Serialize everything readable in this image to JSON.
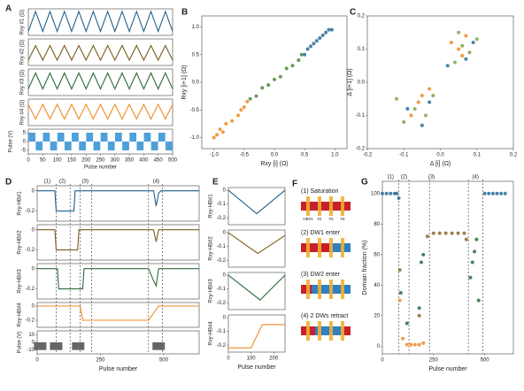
{
  "chart_data": [
    {
      "type": "line",
      "panel": "A",
      "ylabel": "Rxy #1 (Ω)",
      "xlim": [
        0,
        500
      ],
      "ylim": [
        0,
        1
      ],
      "series": [
        {
          "color": "#1f5f8b",
          "x": [
            0,
            25,
            50,
            75,
            100,
            125,
            150,
            175,
            200,
            225,
            250,
            275,
            300,
            325,
            350,
            375,
            400,
            425,
            450,
            475,
            500
          ],
          "values": [
            0.15,
            0.9,
            0.15,
            0.9,
            0.15,
            0.9,
            0.15,
            0.9,
            0.15,
            0.9,
            0.15,
            0.9,
            0.15,
            0.9,
            0.15,
            0.9,
            0.15,
            0.9,
            0.15,
            0.9,
            0.15
          ]
        }
      ]
    },
    {
      "type": "line",
      "ylabel": "Rxy #2 (Ω)",
      "xlim": [
        0,
        500
      ],
      "ylim": [
        0,
        1
      ],
      "series": [
        {
          "color": "#7a5c1e",
          "x": [
            0,
            25,
            50,
            75,
            100,
            125,
            150,
            175,
            200,
            225,
            250,
            275,
            300,
            325,
            350,
            375,
            400,
            425,
            450,
            475,
            500
          ],
          "values": [
            0.2,
            0.75,
            0.2,
            0.75,
            0.2,
            0.75,
            0.2,
            0.75,
            0.2,
            0.75,
            0.2,
            0.75,
            0.2,
            0.75,
            0.2,
            0.75,
            0.2,
            0.75,
            0.2,
            0.75,
            0.2
          ]
        }
      ]
    },
    {
      "type": "line",
      "ylabel": "Rxy #3 (Ω)",
      "xlim": [
        0,
        500
      ],
      "ylim": [
        0,
        1
      ],
      "series": [
        {
          "color": "#2e6b3a",
          "x": [
            0,
            25,
            50,
            75,
            100,
            125,
            150,
            175,
            200,
            225,
            250,
            275,
            300,
            325,
            350,
            375,
            400,
            425,
            450,
            475,
            500
          ],
          "values": [
            0.25,
            0.85,
            0.25,
            0.85,
            0.25,
            0.85,
            0.25,
            0.85,
            0.25,
            0.85,
            0.25,
            0.85,
            0.25,
            0.85,
            0.25,
            0.85,
            0.25,
            0.85,
            0.25,
            0.85,
            0.25
          ]
        }
      ]
    },
    {
      "type": "line",
      "ylabel": "Rxy #4 (Ω)",
      "xlim": [
        0,
        500
      ],
      "ylim": [
        0,
        1
      ],
      "series": [
        {
          "color": "#f08a24",
          "x": [
            0,
            25,
            50,
            75,
            100,
            125,
            150,
            175,
            200,
            225,
            250,
            275,
            300,
            325,
            350,
            375,
            400,
            425,
            450,
            475,
            500
          ],
          "values": [
            0.8,
            0.25,
            0.8,
            0.25,
            0.8,
            0.25,
            0.8,
            0.25,
            0.8,
            0.25,
            0.8,
            0.25,
            0.8,
            0.25,
            0.8,
            0.25,
            0.8,
            0.25,
            0.8,
            0.25,
            0.8
          ]
        }
      ]
    },
    {
      "type": "bar",
      "ylabel": "Pulse (V)",
      "xlabel": "Pulse number",
      "xlim": [
        0,
        500
      ],
      "ylim": [
        -7,
        7
      ],
      "yticks": [
        -5,
        0,
        5
      ],
      "xticks": [
        0,
        50,
        100,
        150,
        200,
        250,
        300,
        350,
        400,
        450,
        500
      ],
      "series": [
        {
          "color": "#4ea0d8",
          "x": [
            12.5,
            37.5,
            62.5,
            87.5,
            112.5,
            137.5,
            162.5,
            187.5,
            212.5,
            237.5,
            262.5,
            287.5,
            312.5,
            337.5,
            362.5,
            387.5,
            412.5,
            437.5,
            462.5,
            487.5
          ],
          "values": [
            5,
            -5,
            5,
            -5,
            5,
            -5,
            5,
            -5,
            5,
            -5,
            5,
            -5,
            5,
            -5,
            5,
            -5,
            5,
            -5,
            5,
            -5
          ]
        }
      ]
    },
    {
      "type": "scatter",
      "panel": "B",
      "xlabel": "Rxy [i] (Ω)",
      "ylabel": "Rxy [i+1] (Ω)",
      "xlim": [
        -1.2,
        1.2
      ],
      "ylim": [
        -1.2,
        1.2
      ],
      "xticks": [
        {
          "value": -1,
          "label": "-1.0"
        },
        -0.5,
        {
          "value": 0,
          "label": "0.0"
        },
        0.5,
        {
          "value": 1,
          "label": "1.0"
        }
      ],
      "yticks": [
        {
          "value": -1,
          "label": "-1.0"
        },
        -0.5,
        {
          "value": 0,
          "label": "0.0"
        },
        0.5,
        {
          "value": 1,
          "label": "1.0"
        }
      ],
      "series": [
        {
          "color": "#f08a24",
          "x": [
            -1.0,
            -0.95,
            -0.9,
            -0.85,
            -0.8,
            -0.7,
            -0.6,
            -0.55,
            -0.5,
            -0.45
          ],
          "values": [
            -1.0,
            -0.95,
            -0.85,
            -0.9,
            -0.75,
            -0.7,
            -0.6,
            -0.5,
            -0.45,
            -0.35
          ]
        },
        {
          "color": "#4f8a3c",
          "x": [
            -0.4,
            -0.3,
            -0.2,
            -0.1,
            0.0,
            0.1,
            0.2,
            0.3,
            0.4,
            0.45
          ],
          "values": [
            -0.3,
            -0.25,
            -0.1,
            -0.05,
            0.05,
            0.1,
            0.25,
            0.3,
            0.4,
            0.5
          ]
        },
        {
          "color": "#2a6f97",
          "x": [
            0.5,
            0.55,
            0.6,
            0.65,
            0.7,
            0.75,
            0.8,
            0.85,
            0.9,
            0.95
          ],
          "values": [
            0.5,
            0.6,
            0.65,
            0.7,
            0.75,
            0.8,
            0.85,
            0.9,
            0.95,
            0.95
          ]
        }
      ]
    },
    {
      "type": "scatter",
      "panel": "C",
      "xlabel": "Δ [i] (Ω)",
      "ylabel": "Δ [i+1] (Ω)",
      "xlim": [
        -0.2,
        0.2
      ],
      "ylim": [
        -0.2,
        0.2
      ],
      "xticks": [
        -0.2,
        -0.1,
        {
          "value": 0,
          "label": "0.0"
        },
        0.1,
        0.2
      ],
      "yticks": [
        -0.2,
        -0.1,
        {
          "value": 0,
          "label": "0.0"
        },
        0.1,
        0.2
      ],
      "series": [
        {
          "color": "#f08a24",
          "x": [
            -0.08,
            -0.06,
            -0.05,
            -0.03,
            0.03,
            0.05,
            0.07,
            0.06
          ],
          "values": [
            -0.1,
            -0.06,
            -0.04,
            -0.02,
            0.12,
            0.1,
            0.14,
            0.08
          ]
        },
        {
          "color": "#7aa84a",
          "x": [
            -0.12,
            -0.1,
            -0.07,
            -0.04,
            -0.02,
            0.04,
            0.06,
            0.08,
            0.1,
            0.05
          ],
          "values": [
            -0.05,
            -0.12,
            -0.08,
            -0.1,
            -0.04,
            0.06,
            0.11,
            0.09,
            0.13,
            0.15
          ]
        },
        {
          "color": "#2a6f97",
          "x": [
            -0.09,
            -0.05,
            -0.03,
            0.02,
            0.07,
            0.09
          ],
          "values": [
            -0.08,
            -0.13,
            -0.06,
            0.05,
            0.07,
            0.12
          ]
        }
      ]
    },
    {
      "type": "line",
      "panel": "D",
      "ylabel": "Rxy-HB#1",
      "xlim": [
        0,
        640
      ],
      "ylim": [
        -0.3,
        0.05
      ],
      "yticks": [
        -0.2,
        0
      ],
      "vlines": [
        75,
        130,
        170,
        215,
        440,
        495
      ],
      "annotations": [
        {
          "text": "(1)",
          "x": 40
        },
        {
          "text": "(2)",
          "x": 100
        },
        {
          "text": "(3)",
          "x": 190
        },
        {
          "text": "(4)",
          "x": 470
        }
      ],
      "series": [
        {
          "color": "#1f5f8b",
          "x": [
            0,
            70,
            75,
            145,
            150,
            460,
            470,
            480,
            490,
            640
          ],
          "values": [
            0,
            0,
            -0.2,
            -0.2,
            0,
            0,
            -0.15,
            -0.02,
            0,
            0
          ]
        }
      ]
    },
    {
      "type": "line",
      "ylabel": "Rxy-HB#2",
      "xlim": [
        0,
        640
      ],
      "ylim": [
        -0.3,
        0.05
      ],
      "yticks": [
        -0.2,
        0
      ],
      "series": [
        {
          "color": "#7a5c1e",
          "x": [
            0,
            70,
            75,
            160,
            165,
            460,
            470,
            480,
            640
          ],
          "values": [
            0,
            0,
            -0.2,
            -0.2,
            0,
            0,
            -0.12,
            0,
            0
          ]
        }
      ]
    },
    {
      "type": "line",
      "ylabel": "Rxy-HB#3",
      "xlim": [
        0,
        640
      ],
      "ylim": [
        -0.3,
        0.05
      ],
      "yticks": [
        -0.2,
        0
      ],
      "series": [
        {
          "color": "#2e6b3a",
          "x": [
            0,
            80,
            85,
            180,
            185,
            440,
            460,
            470,
            480,
            640
          ],
          "values": [
            0,
            0,
            -0.2,
            -0.2,
            0,
            0,
            -0.12,
            -0.17,
            0,
            0
          ]
        }
      ]
    },
    {
      "type": "line",
      "ylabel": "Rxy-HB#4",
      "xlim": [
        0,
        640
      ],
      "ylim": [
        -0.3,
        0.05
      ],
      "yticks": [
        -0.2,
        0
      ],
      "series": [
        {
          "color": "#f08a24",
          "x": [
            0,
            170,
            180,
            440,
            480,
            640
          ],
          "values": [
            0,
            0,
            -0.2,
            -0.2,
            0,
            0
          ]
        }
      ]
    },
    {
      "type": "bar",
      "ylabel": "Pulse (V)",
      "xlabel": "Pulse number",
      "xlim": [
        0,
        640
      ],
      "ylim": [
        -15,
        15
      ],
      "yticks": [
        -10,
        0,
        10
      ],
      "xticks": [
        0,
        250,
        500
      ],
      "series": [
        {
          "color": "#666666",
          "x": [
            12,
            75,
            162,
            480
          ],
          "values": [
            -10,
            -10,
            -10,
            -10
          ]
        }
      ]
    },
    {
      "type": "line",
      "panel": "E",
      "ylabel": "Rxy-HB#1",
      "xlim": [
        0,
        250
      ],
      "ylim": [
        -0.25,
        0.02
      ],
      "yticks": [
        -0.2,
        -0.1,
        0
      ],
      "series": [
        {
          "color": "#1f5f8b",
          "x": [
            0,
            125,
            250
          ],
          "values": [
            0,
            -0.17,
            0
          ]
        }
      ]
    },
    {
      "type": "line",
      "ylabel": "Rxy-HB#2",
      "xlim": [
        0,
        250
      ],
      "ylim": [
        -0.25,
        0.02
      ],
      "yticks": [
        -0.2,
        -0.1,
        0
      ],
      "series": [
        {
          "color": "#7a5c1e",
          "x": [
            0,
            130,
            250
          ],
          "values": [
            0,
            -0.15,
            -0.02
          ]
        }
      ]
    },
    {
      "type": "line",
      "ylabel": "Rxy-HB#3",
      "xlim": [
        0,
        250
      ],
      "ylim": [
        -0.25,
        0.02
      ],
      "yticks": [
        -0.2,
        -0.1,
        0
      ],
      "series": [
        {
          "color": "#2e6b3a",
          "x": [
            0,
            140,
            250
          ],
          "values": [
            0,
            -0.18,
            0
          ]
        }
      ]
    },
    {
      "type": "line",
      "ylabel": "Rxy-HB#4",
      "xlabel": "Pulse number",
      "xlim": [
        0,
        250
      ],
      "ylim": [
        -0.25,
        0.02
      ],
      "yticks": [
        -0.2,
        -0.1,
        0
      ],
      "xticks": [
        0,
        100,
        200
      ],
      "series": [
        {
          "color": "#f08a24",
          "x": [
            0,
            100,
            150,
            250
          ],
          "values": [
            -0.22,
            -0.22,
            -0.05,
            -0.05
          ]
        }
      ]
    },
    {
      "type": "scatter",
      "panel": "G",
      "xlabel": "Pulse number",
      "ylabel": "Domain fraction (%)",
      "xlim": [
        0,
        640
      ],
      "ylim": [
        -5,
        108
      ],
      "xticks": [
        0,
        250,
        500
      ],
      "yticks": [
        0,
        20,
        40,
        60,
        80,
        100
      ],
      "vlines": [
        80,
        130,
        230,
        420,
        490
      ],
      "annotations": [
        {
          "text": "(1)",
          "x": 40
        },
        {
          "text": "(2)",
          "x": 105
        },
        {
          "text": "(3)",
          "x": 240
        },
        {
          "text": "(4)",
          "x": 455
        }
      ],
      "series": [
        {
          "color": "#2a6f97",
          "x": [
            0,
            20,
            40,
            60,
            70,
            80,
            500,
            520,
            540,
            560,
            580,
            600
          ],
          "values": [
            100,
            100,
            100,
            100,
            100,
            97,
            100,
            100,
            100,
            100,
            100,
            100
          ]
        },
        {
          "color": "#f08a24",
          "x": [
            85,
            100,
            120,
            140,
            160,
            180,
            200
          ],
          "values": [
            30,
            5,
            1,
            1,
            1,
            1,
            2
          ]
        },
        {
          "color": "#8a6a2a",
          "x": [
            85,
            180,
            220,
            250,
            280,
            310,
            340,
            370,
            400,
            410
          ],
          "values": [
            50,
            20,
            72,
            74,
            74,
            74,
            74,
            74,
            74,
            70
          ]
        },
        {
          "color": "#2e6b3a",
          "x": [
            90,
            120,
            180,
            190,
            200,
            430,
            440,
            450,
            460,
            470
          ],
          "values": [
            35,
            15,
            25,
            55,
            60,
            45,
            55,
            62,
            70,
            30
          ]
        }
      ]
    }
  ],
  "diagram": {
    "panel": "F",
    "steps": [
      "(1) Saturation",
      "(2) DW1 enter",
      "(3) DW2 enter",
      "(4) 2 DWs retract"
    ],
    "bars": [
      "HB#1",
      "#2",
      "#3",
      "#4"
    ]
  }
}
